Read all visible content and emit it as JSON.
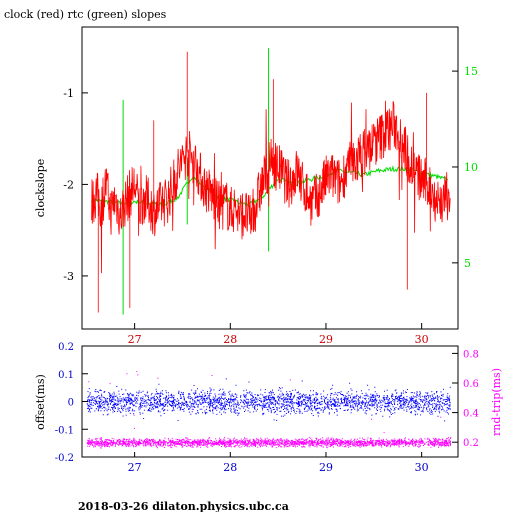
{
  "title": "clock (red) rtc (green) slopes",
  "footer": "2018-03-26  dilaton.physics.ubc.ca",
  "colors": {
    "clock": "#ff0000",
    "rtc": "#00dd00",
    "offset": "#0000ff",
    "rndtrip": "#ff00ff",
    "axis_top_x": "#cc0000",
    "axis_blue": "#0000cc"
  },
  "chart_data": [
    {
      "type": "line",
      "title": "clock (red) rtc (green) slopes",
      "xlabel": "",
      "ylabel": "clockslope",
      "y2label": "",
      "xlim": [
        26.45,
        30.38
      ],
      "ylim": [
        -3.58,
        -0.28
      ],
      "y2lim": [
        1.55,
        17.3
      ],
      "xticks": [
        "27",
        "28",
        "29",
        "30"
      ],
      "yticks": [
        "-1",
        "-2",
        "-3"
      ],
      "y2ticks": [
        "5",
        "10",
        "15"
      ],
      "series": [
        {
          "axis": "left",
          "color": "#ff0000",
          "x": [
            26.55,
            26.6,
            26.65,
            26.7,
            26.75,
            26.8,
            26.85,
            26.9,
            26.95,
            27.0,
            27.05,
            27.1,
            27.15,
            27.2,
            27.25,
            27.3,
            27.35,
            27.4,
            27.45,
            27.5,
            27.55,
            27.6,
            27.65,
            27.7,
            27.75,
            27.8,
            27.85,
            27.9,
            27.95,
            28.0,
            28.05,
            28.1,
            28.15,
            28.2,
            28.25,
            28.3,
            28.35,
            28.4,
            28.45,
            28.5,
            28.55,
            28.6,
            28.65,
            28.7,
            28.75,
            28.8,
            28.85,
            28.9,
            28.95,
            29.0,
            29.05,
            29.1,
            29.15,
            29.2,
            29.25,
            29.3,
            29.35,
            29.4,
            29.45,
            29.5,
            29.55,
            29.6,
            29.65,
            29.7,
            29.75,
            29.8,
            29.85,
            29.9,
            29.95,
            30.0,
            30.05,
            30.1,
            30.15,
            30.2,
            30.25,
            30.3
          ],
          "values": [
            -2.2,
            -2.1,
            -2.25,
            -2.0,
            -2.3,
            -2.15,
            -2.35,
            -2.2,
            -2.1,
            -2.0,
            -2.25,
            -2.15,
            -2.2,
            -2.3,
            -2.25,
            -2.2,
            -2.15,
            -2.0,
            -1.85,
            -1.75,
            -1.65,
            -1.7,
            -1.8,
            -1.95,
            -2.05,
            -2.1,
            -2.2,
            -2.25,
            -2.2,
            -2.3,
            -2.25,
            -2.35,
            -2.3,
            -2.4,
            -2.3,
            -2.1,
            -1.95,
            -1.8,
            -1.75,
            -1.8,
            -1.9,
            -2.0,
            -1.95,
            -1.85,
            -2.0,
            -2.1,
            -2.2,
            -2.15,
            -2.05,
            -1.95,
            -1.9,
            -1.95,
            -2.0,
            -1.85,
            -1.8,
            -1.75,
            -1.7,
            -1.65,
            -1.6,
            -1.55,
            -1.5,
            -1.45,
            -1.4,
            -1.35,
            -1.4,
            -1.5,
            -1.7,
            -1.8,
            -1.9,
            -1.95,
            -2.0,
            -2.05,
            -2.15,
            -2.2,
            -2.15,
            -2.1
          ]
        },
        {
          "axis": "right",
          "color": "#00dd00",
          "x": [
            26.55,
            26.7,
            26.85,
            27.0,
            27.15,
            27.3,
            27.45,
            27.6,
            27.75,
            27.9,
            28.05,
            28.2,
            28.35,
            28.5,
            28.65,
            28.8,
            28.95,
            29.1,
            29.25,
            29.4,
            29.55,
            29.7,
            29.85,
            30.0,
            30.15,
            30.28
          ],
          "values": [
            8.3,
            8.2,
            8.1,
            8.2,
            8.1,
            8.0,
            8.4,
            9.5,
            8.9,
            8.4,
            8.2,
            8.0,
            8.5,
            9.4,
            9.1,
            9.3,
            9.5,
            9.8,
            9.7,
            9.6,
            9.8,
            9.9,
            9.9,
            9.7,
            9.5,
            9.3
          ]
        }
      ]
    },
    {
      "type": "scatter",
      "xlabel": "",
      "ylabel": "offset(ms)",
      "y2label": "rnd-trip(ms)",
      "xlim": [
        26.45,
        30.38
      ],
      "ylim": [
        -0.2,
        0.2
      ],
      "y2lim": [
        0.1,
        0.85
      ],
      "xticks": [
        "27",
        "28",
        "29",
        "30"
      ],
      "yticks": [
        "0.2",
        "0.1",
        "0",
        "-0.1",
        "-0.2"
      ],
      "y2ticks": [
        "0.8",
        "0.6",
        "0.4",
        "0.2"
      ],
      "series": [
        {
          "axis": "left",
          "color": "#0000ff",
          "mean": 0.0,
          "spread": 0.03,
          "x_range": [
            26.5,
            30.3
          ]
        },
        {
          "axis": "right",
          "color": "#ff00ff",
          "mean": 0.2,
          "spread": 0.02,
          "x_range": [
            26.5,
            30.3
          ]
        }
      ]
    }
  ]
}
